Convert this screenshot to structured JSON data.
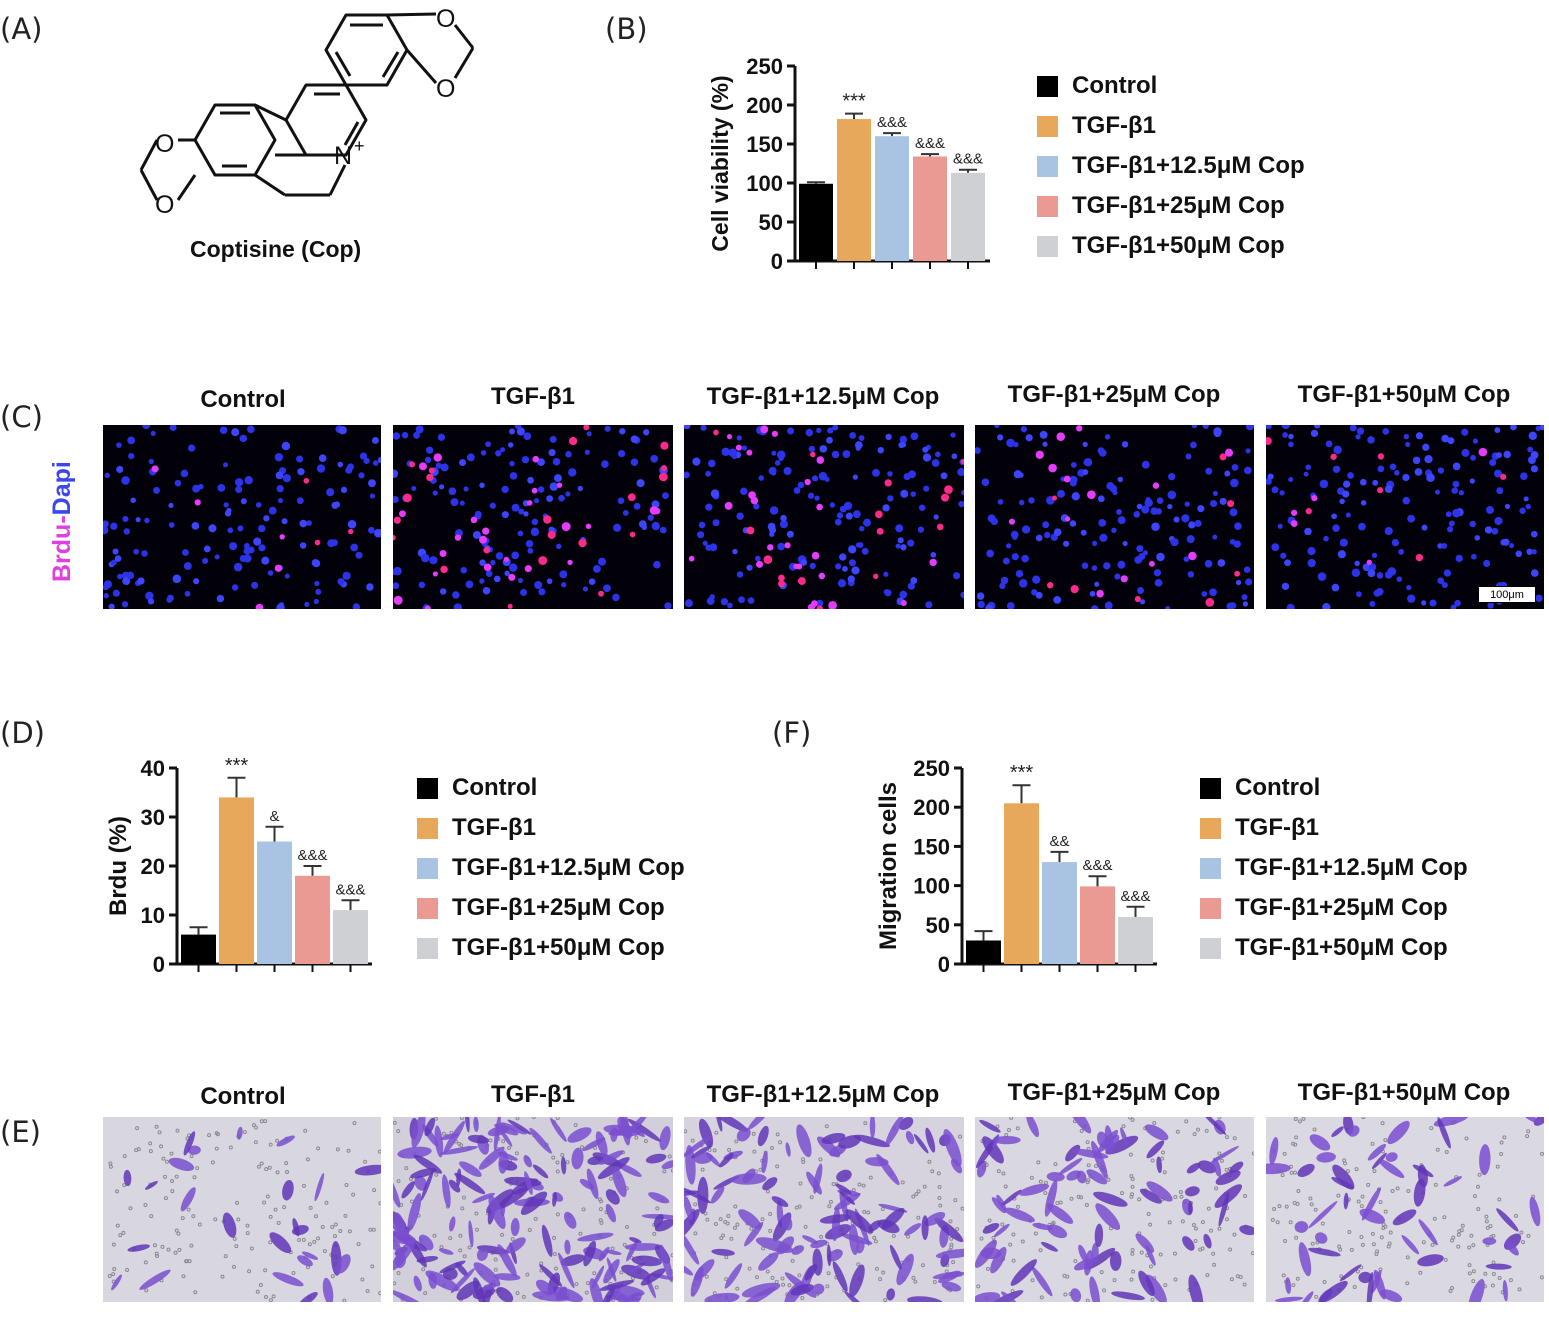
{
  "panel_labels": {
    "A": "(A)",
    "B": "(B)",
    "C": "(C)",
    "D": "(D)",
    "E": "(E)",
    "F": "(F)"
  },
  "molecule": {
    "name": "Coptisine (Cop)",
    "atoms": {
      "o": "O",
      "n": "N",
      "charge": "+"
    }
  },
  "groups": [
    "Control",
    "TGF-β1",
    "TGF-β1+12.5μM Cop",
    "TGF-β1+25μM Cop",
    "TGF-β1+50μM Cop"
  ],
  "colors": {
    "Control": "#000000",
    "TGF-β1": "#e8a85c",
    "TGF-β1+12.5μM Cop": "#a9c3e2",
    "TGF-β1+25μM Cop": "#ea9a92",
    "TGF-β1+50μM Cop": "#cfd0d3"
  },
  "brdu_panel": {
    "ylabel_parts": [
      "Brdu",
      "-",
      "Dapi"
    ],
    "ylabel_colors": [
      "#e040e0",
      "#e040e0",
      "#3a46f0"
    ],
    "scale_bar": "100μm",
    "titles": [
      "Control",
      "TGF-β1",
      "TGF-β1+12.5μM Cop",
      "TGF-β1+25μM Cop",
      "TGF-β1+50μM Cop"
    ]
  },
  "transwell_panel": {
    "titles": [
      "Control",
      "TGF-β1",
      "TGF-β1+12.5μM Cop",
      "TGF-β1+25μM Cop",
      "TGF-β1+50μM Cop"
    ]
  },
  "chart_data": [
    {
      "id": "B",
      "type": "bar",
      "categories": [
        "Control",
        "TGF-β1",
        "TGF-β1+12.5μM Cop",
        "TGF-β1+25μM Cop",
        "TGF-β1+50μM Cop"
      ],
      "values": [
        99,
        182,
        160,
        134,
        113
      ],
      "errors": [
        2,
        7,
        4,
        3,
        4
      ],
      "significance": [
        "",
        "***",
        "&&&",
        "&&&",
        "&&&"
      ],
      "ylabel": "Cell viability (%)",
      "xlabel": "",
      "ylim": [
        0,
        250
      ],
      "yticks": [
        0,
        50,
        100,
        150,
        200,
        250
      ],
      "legend": "right"
    },
    {
      "id": "D",
      "type": "bar",
      "categories": [
        "Control",
        "TGF-β1",
        "TGF-β1+12.5μM Cop",
        "TGF-β1+25μM Cop",
        "TGF-β1+50μM Cop"
      ],
      "values": [
        6,
        34,
        25,
        18,
        11
      ],
      "errors": [
        1.5,
        4,
        3,
        2,
        2
      ],
      "significance": [
        "",
        "***",
        "&",
        "&&&",
        "&&&"
      ],
      "ylabel": "Brdu (%)",
      "xlabel": "",
      "ylim": [
        0,
        40
      ],
      "yticks": [
        0,
        10,
        20,
        30,
        40
      ],
      "legend": "right"
    },
    {
      "id": "F",
      "type": "bar",
      "categories": [
        "Control",
        "TGF-β1",
        "TGF-β1+12.5μM Cop",
        "TGF-β1+25μM Cop",
        "TGF-β1+50μM Cop"
      ],
      "values": [
        30,
        205,
        130,
        99,
        60
      ],
      "errors": [
        12,
        23,
        13,
        13,
        13
      ],
      "significance": [
        "",
        "***",
        "&&",
        "&&&",
        "&&&"
      ],
      "ylabel": "Migration cells",
      "xlabel": "",
      "ylim": [
        0,
        250
      ],
      "yticks": [
        0,
        50,
        100,
        150,
        200,
        250
      ],
      "legend": "right"
    }
  ]
}
